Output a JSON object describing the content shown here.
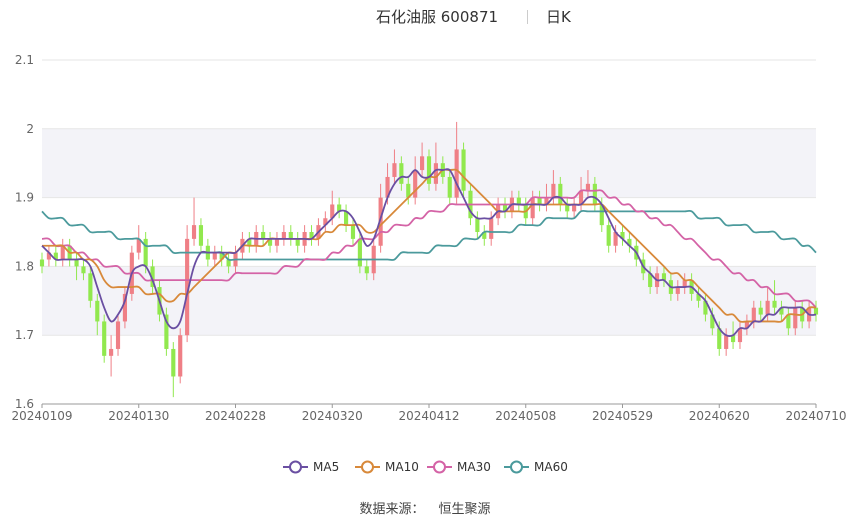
{
  "title": "石化油服 600871",
  "period": "日K",
  "source": {
    "label": "数据来源：",
    "name": "恒生聚源"
  },
  "colors": {
    "up": "#ef7f86",
    "down": "#91e84e",
    "grid": "#e6e6e6",
    "band": "#f3f3f8",
    "axis_text": "#666666"
  },
  "chart_data": {
    "type": "candlestick",
    "title": "石化油服 600871",
    "ylim": [
      1.6,
      2.1
    ],
    "yticks": [
      1.6,
      1.7,
      1.8,
      1.9,
      2,
      2.1
    ],
    "ytick_labels": [
      "1.6",
      "1.7",
      "1.8",
      "1.9",
      "2",
      "2.1"
    ],
    "x_tick_labels": [
      "20240109",
      "20240130",
      "20240228",
      "20240320",
      "20240412",
      "20240508",
      "20240529",
      "20240620",
      "20240710"
    ],
    "x_tick_index": [
      0,
      14,
      28,
      42,
      56,
      70,
      84,
      98,
      112
    ],
    "grid": true,
    "legend_position": "bottom",
    "candles": [
      [
        1.81,
        1.8,
        1.82,
        1.79
      ],
      [
        1.81,
        1.82,
        1.83,
        1.8
      ],
      [
        1.82,
        1.81,
        1.83,
        1.8
      ],
      [
        1.81,
        1.83,
        1.84,
        1.8
      ],
      [
        1.83,
        1.81,
        1.84,
        1.8
      ],
      [
        1.81,
        1.8,
        1.82,
        1.78
      ],
      [
        1.8,
        1.79,
        1.81,
        1.78
      ],
      [
        1.79,
        1.75,
        1.8,
        1.74
      ],
      [
        1.75,
        1.72,
        1.76,
        1.7
      ],
      [
        1.72,
        1.67,
        1.73,
        1.66
      ],
      [
        1.67,
        1.68,
        1.7,
        1.64
      ],
      [
        1.68,
        1.72,
        1.73,
        1.67
      ],
      [
        1.72,
        1.76,
        1.77,
        1.71
      ],
      [
        1.76,
        1.82,
        1.83,
        1.75
      ],
      [
        1.82,
        1.84,
        1.86,
        1.81
      ],
      [
        1.84,
        1.8,
        1.85,
        1.79
      ],
      [
        1.8,
        1.77,
        1.81,
        1.76
      ],
      [
        1.77,
        1.73,
        1.78,
        1.72
      ],
      [
        1.73,
        1.68,
        1.74,
        1.67
      ],
      [
        1.68,
        1.64,
        1.69,
        1.61
      ],
      [
        1.64,
        1.7,
        1.71,
        1.63
      ],
      [
        1.7,
        1.84,
        1.86,
        1.69
      ],
      [
        1.84,
        1.86,
        1.9,
        1.83
      ],
      [
        1.86,
        1.83,
        1.87,
        1.82
      ],
      [
        1.83,
        1.81,
        1.84,
        1.8
      ],
      [
        1.81,
        1.82,
        1.83,
        1.8
      ],
      [
        1.82,
        1.81,
        1.83,
        1.8
      ],
      [
        1.81,
        1.8,
        1.82,
        1.79
      ],
      [
        1.8,
        1.82,
        1.83,
        1.79
      ],
      [
        1.82,
        1.84,
        1.85,
        1.81
      ],
      [
        1.84,
        1.83,
        1.85,
        1.82
      ],
      [
        1.83,
        1.85,
        1.86,
        1.82
      ],
      [
        1.85,
        1.84,
        1.86,
        1.83
      ],
      [
        1.84,
        1.83,
        1.85,
        1.82
      ],
      [
        1.83,
        1.84,
        1.85,
        1.82
      ],
      [
        1.84,
        1.85,
        1.86,
        1.83
      ],
      [
        1.85,
        1.84,
        1.86,
        1.83
      ],
      [
        1.84,
        1.83,
        1.85,
        1.82
      ],
      [
        1.83,
        1.85,
        1.86,
        1.82
      ],
      [
        1.85,
        1.84,
        1.86,
        1.83
      ],
      [
        1.84,
        1.86,
        1.87,
        1.83
      ],
      [
        1.86,
        1.87,
        1.88,
        1.85
      ],
      [
        1.87,
        1.89,
        1.91,
        1.86
      ],
      [
        1.89,
        1.88,
        1.9,
        1.87
      ],
      [
        1.88,
        1.86,
        1.89,
        1.85
      ],
      [
        1.86,
        1.84,
        1.87,
        1.83
      ],
      [
        1.84,
        1.8,
        1.85,
        1.79
      ],
      [
        1.8,
        1.79,
        1.81,
        1.78
      ],
      [
        1.79,
        1.83,
        1.84,
        1.78
      ],
      [
        1.83,
        1.9,
        1.92,
        1.82
      ],
      [
        1.9,
        1.93,
        1.95,
        1.89
      ],
      [
        1.93,
        1.95,
        1.97,
        1.92
      ],
      [
        1.95,
        1.92,
        1.96,
        1.91
      ],
      [
        1.92,
        1.9,
        1.93,
        1.89
      ],
      [
        1.9,
        1.94,
        1.96,
        1.89
      ],
      [
        1.94,
        1.96,
        1.98,
        1.93
      ],
      [
        1.96,
        1.92,
        1.97,
        1.91
      ],
      [
        1.92,
        1.95,
        1.98,
        1.91
      ],
      [
        1.95,
        1.93,
        1.96,
        1.92
      ],
      [
        1.93,
        1.9,
        1.94,
        1.89
      ],
      [
        1.9,
        1.97,
        2.01,
        1.89
      ],
      [
        1.97,
        1.91,
        1.98,
        1.9
      ],
      [
        1.91,
        1.87,
        1.92,
        1.86
      ],
      [
        1.87,
        1.85,
        1.88,
        1.84
      ],
      [
        1.85,
        1.84,
        1.86,
        1.83
      ],
      [
        1.84,
        1.87,
        1.88,
        1.83
      ],
      [
        1.87,
        1.89,
        1.9,
        1.86
      ],
      [
        1.89,
        1.88,
        1.9,
        1.87
      ],
      [
        1.88,
        1.9,
        1.91,
        1.87
      ],
      [
        1.9,
        1.89,
        1.91,
        1.88
      ],
      [
        1.89,
        1.87,
        1.9,
        1.86
      ],
      [
        1.87,
        1.9,
        1.91,
        1.86
      ],
      [
        1.9,
        1.89,
        1.91,
        1.88
      ],
      [
        1.89,
        1.9,
        1.92,
        1.88
      ],
      [
        1.9,
        1.92,
        1.94,
        1.89
      ],
      [
        1.92,
        1.89,
        1.93,
        1.88
      ],
      [
        1.89,
        1.88,
        1.9,
        1.87
      ],
      [
        1.88,
        1.89,
        1.9,
        1.87
      ],
      [
        1.89,
        1.91,
        1.93,
        1.88
      ],
      [
        1.91,
        1.92,
        1.94,
        1.9
      ],
      [
        1.92,
        1.89,
        1.93,
        1.88
      ],
      [
        1.89,
        1.86,
        1.9,
        1.85
      ],
      [
        1.86,
        1.83,
        1.87,
        1.82
      ],
      [
        1.83,
        1.85,
        1.86,
        1.82
      ],
      [
        1.85,
        1.84,
        1.86,
        1.83
      ],
      [
        1.84,
        1.83,
        1.85,
        1.82
      ],
      [
        1.83,
        1.81,
        1.84,
        1.8
      ],
      [
        1.81,
        1.79,
        1.82,
        1.78
      ],
      [
        1.79,
        1.77,
        1.8,
        1.76
      ],
      [
        1.77,
        1.79,
        1.8,
        1.76
      ],
      [
        1.79,
        1.78,
        1.8,
        1.77
      ],
      [
        1.78,
        1.76,
        1.79,
        1.75
      ],
      [
        1.76,
        1.77,
        1.78,
        1.75
      ],
      [
        1.77,
        1.78,
        1.79,
        1.76
      ],
      [
        1.78,
        1.76,
        1.79,
        1.75
      ],
      [
        1.76,
        1.75,
        1.77,
        1.74
      ],
      [
        1.75,
        1.73,
        1.76,
        1.72
      ],
      [
        1.73,
        1.71,
        1.74,
        1.7
      ],
      [
        1.71,
        1.68,
        1.72,
        1.67
      ],
      [
        1.68,
        1.7,
        1.71,
        1.67
      ],
      [
        1.7,
        1.69,
        1.72,
        1.68
      ],
      [
        1.69,
        1.71,
        1.72,
        1.68
      ],
      [
        1.71,
        1.72,
        1.73,
        1.7
      ],
      [
        1.72,
        1.74,
        1.75,
        1.71
      ],
      [
        1.74,
        1.73,
        1.75,
        1.72
      ],
      [
        1.73,
        1.75,
        1.77,
        1.72
      ],
      [
        1.75,
        1.74,
        1.78,
        1.73
      ],
      [
        1.74,
        1.73,
        1.75,
        1.72
      ],
      [
        1.73,
        1.71,
        1.74,
        1.7
      ],
      [
        1.71,
        1.74,
        1.75,
        1.7
      ],
      [
        1.74,
        1.72,
        1.75,
        1.71
      ],
      [
        1.72,
        1.74,
        1.75,
        1.71
      ],
      [
        1.74,
        1.73,
        1.75,
        1.72
      ]
    ],
    "series": [
      {
        "name": "MA5",
        "color": "#6a4fa2",
        "values": [
          1.83,
          1.82,
          1.81,
          1.81,
          1.81,
          1.81,
          1.81,
          1.8,
          1.77,
          1.74,
          1.72,
          1.73,
          1.75,
          1.79,
          1.8,
          1.8,
          1.78,
          1.75,
          1.72,
          1.71,
          1.72,
          1.76,
          1.8,
          1.82,
          1.82,
          1.82,
          1.82,
          1.82,
          1.82,
          1.83,
          1.84,
          1.84,
          1.84,
          1.84,
          1.84,
          1.84,
          1.84,
          1.84,
          1.84,
          1.84,
          1.85,
          1.86,
          1.87,
          1.88,
          1.88,
          1.87,
          1.85,
          1.83,
          1.84,
          1.87,
          1.9,
          1.92,
          1.93,
          1.93,
          1.94,
          1.93,
          1.93,
          1.94,
          1.94,
          1.94,
          1.92,
          1.9,
          1.88,
          1.87,
          1.87,
          1.87,
          1.88,
          1.88,
          1.89,
          1.89,
          1.89,
          1.89,
          1.89,
          1.89,
          1.9,
          1.9,
          1.89,
          1.89,
          1.89,
          1.9,
          1.9,
          1.89,
          1.87,
          1.85,
          1.84,
          1.83,
          1.82,
          1.8,
          1.79,
          1.78,
          1.78,
          1.77,
          1.77,
          1.77,
          1.77,
          1.76,
          1.75,
          1.73,
          1.71,
          1.7,
          1.7,
          1.71,
          1.71,
          1.72,
          1.72,
          1.73,
          1.73,
          1.74,
          1.74,
          1.74,
          1.74,
          1.73,
          1.73
        ]
      },
      {
        "name": "MA10",
        "color": "#d8893a",
        "values": [
          1.83,
          1.83,
          1.83,
          1.83,
          1.82,
          1.82,
          1.81,
          1.81,
          1.8,
          1.78,
          1.77,
          1.77,
          1.77,
          1.77,
          1.77,
          1.76,
          1.76,
          1.76,
          1.75,
          1.75,
          1.76,
          1.76,
          1.77,
          1.78,
          1.79,
          1.8,
          1.81,
          1.82,
          1.82,
          1.83,
          1.83,
          1.83,
          1.83,
          1.84,
          1.84,
          1.84,
          1.84,
          1.84,
          1.84,
          1.84,
          1.84,
          1.85,
          1.85,
          1.86,
          1.86,
          1.86,
          1.86,
          1.85,
          1.85,
          1.86,
          1.87,
          1.88,
          1.89,
          1.9,
          1.91,
          1.92,
          1.93,
          1.93,
          1.94,
          1.94,
          1.94,
          1.93,
          1.92,
          1.91,
          1.9,
          1.89,
          1.88,
          1.88,
          1.88,
          1.88,
          1.88,
          1.89,
          1.89,
          1.89,
          1.89,
          1.89,
          1.89,
          1.89,
          1.89,
          1.89,
          1.89,
          1.89,
          1.88,
          1.87,
          1.86,
          1.85,
          1.84,
          1.83,
          1.82,
          1.81,
          1.8,
          1.79,
          1.79,
          1.78,
          1.78,
          1.77,
          1.76,
          1.75,
          1.74,
          1.73,
          1.73,
          1.72,
          1.72,
          1.72,
          1.72,
          1.72,
          1.72,
          1.72,
          1.73,
          1.73,
          1.73,
          1.74,
          1.74
        ]
      },
      {
        "name": "MA30",
        "color": "#d463a6",
        "values": [
          1.84,
          1.84,
          1.83,
          1.83,
          1.83,
          1.82,
          1.82,
          1.81,
          1.81,
          1.8,
          1.8,
          1.8,
          1.79,
          1.79,
          1.79,
          1.78,
          1.78,
          1.78,
          1.78,
          1.78,
          1.78,
          1.78,
          1.78,
          1.78,
          1.78,
          1.78,
          1.78,
          1.78,
          1.79,
          1.79,
          1.79,
          1.79,
          1.79,
          1.79,
          1.79,
          1.8,
          1.8,
          1.8,
          1.81,
          1.81,
          1.81,
          1.81,
          1.82,
          1.82,
          1.83,
          1.83,
          1.84,
          1.84,
          1.84,
          1.85,
          1.85,
          1.86,
          1.86,
          1.86,
          1.87,
          1.87,
          1.88,
          1.88,
          1.88,
          1.89,
          1.89,
          1.89,
          1.89,
          1.89,
          1.89,
          1.89,
          1.89,
          1.89,
          1.89,
          1.89,
          1.89,
          1.9,
          1.9,
          1.9,
          1.9,
          1.9,
          1.9,
          1.9,
          1.91,
          1.91,
          1.91,
          1.91,
          1.9,
          1.9,
          1.89,
          1.89,
          1.88,
          1.88,
          1.87,
          1.87,
          1.86,
          1.86,
          1.85,
          1.84,
          1.84,
          1.83,
          1.82,
          1.81,
          1.81,
          1.8,
          1.79,
          1.79,
          1.78,
          1.78,
          1.77,
          1.77,
          1.76,
          1.76,
          1.76,
          1.75,
          1.75,
          1.75,
          1.74
        ]
      },
      {
        "name": "MA60",
        "color": "#4b9a9c",
        "values": [
          1.88,
          1.87,
          1.87,
          1.87,
          1.86,
          1.86,
          1.86,
          1.85,
          1.85,
          1.85,
          1.85,
          1.84,
          1.84,
          1.84,
          1.84,
          1.83,
          1.83,
          1.83,
          1.83,
          1.82,
          1.82,
          1.82,
          1.82,
          1.82,
          1.82,
          1.82,
          1.82,
          1.81,
          1.81,
          1.81,
          1.81,
          1.81,
          1.81,
          1.81,
          1.81,
          1.81,
          1.81,
          1.81,
          1.81,
          1.81,
          1.81,
          1.81,
          1.81,
          1.81,
          1.81,
          1.81,
          1.81,
          1.81,
          1.81,
          1.81,
          1.81,
          1.81,
          1.82,
          1.82,
          1.82,
          1.82,
          1.82,
          1.83,
          1.83,
          1.83,
          1.83,
          1.84,
          1.84,
          1.84,
          1.85,
          1.85,
          1.85,
          1.85,
          1.85,
          1.86,
          1.86,
          1.86,
          1.86,
          1.87,
          1.87,
          1.87,
          1.87,
          1.87,
          1.88,
          1.88,
          1.88,
          1.88,
          1.88,
          1.88,
          1.88,
          1.88,
          1.88,
          1.88,
          1.88,
          1.88,
          1.88,
          1.88,
          1.88,
          1.88,
          1.88,
          1.87,
          1.87,
          1.87,
          1.87,
          1.86,
          1.86,
          1.86,
          1.86,
          1.85,
          1.85,
          1.85,
          1.85,
          1.84,
          1.84,
          1.84,
          1.83,
          1.83,
          1.82
        ]
      }
    ]
  }
}
